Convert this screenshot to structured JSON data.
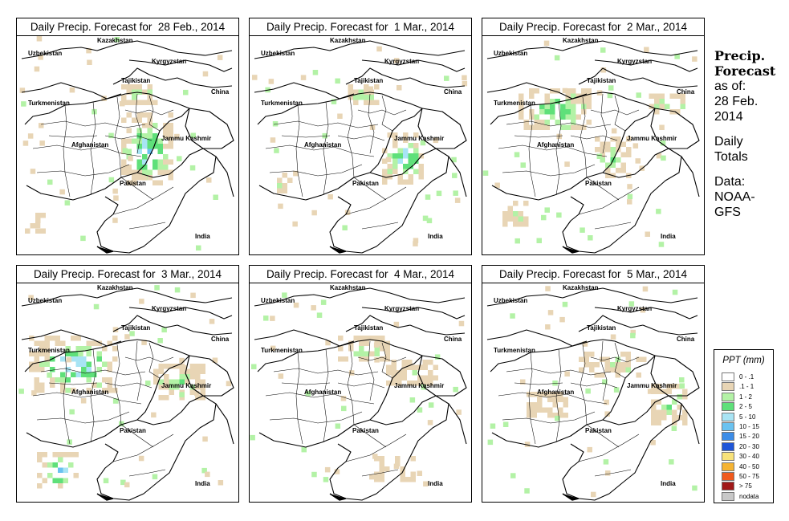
{
  "panels": [
    {
      "title": "Daily Precip. Forecast for  28 Feb., 2014"
    },
    {
      "title": "Daily Precip. Forecast for  1 Mar., 2014"
    },
    {
      "title": "Daily Precip. Forecast for  2 Mar., 2014"
    },
    {
      "title": "Daily Precip. Forecast for  3 Mar., 2014"
    },
    {
      "title": "Daily Precip. Forecast for  4 Mar., 2014"
    },
    {
      "title": "Daily Precip. Forecast for  5 Mar., 2014"
    }
  ],
  "map_labels": {
    "kazakhstan": "Kazakhstan",
    "uzbekistan": "Uzbekistan",
    "kyrgyzstan": "Kyrgyzstan",
    "tajikistan": "Tajikistan",
    "turkmenistan": "Turkmenistan",
    "china": "China",
    "afghanistan": "Afghanistan",
    "jammu_kashmir": "Jammu Kashmir",
    "pakistan": "Pakistan",
    "india": "India"
  },
  "sidebar": {
    "heading1": "Precip.",
    "heading2": "Forecast",
    "line1": "as of:",
    "line2": "28 Feb.",
    "line3": "2014",
    "line4": "Daily",
    "line5": "Totals",
    "line6": "Data:",
    "line7": "NOAA-",
    "line8": "GFS"
  },
  "legend": {
    "title": "PPT (mm)",
    "items": [
      {
        "label": "0 - .1",
        "color": "#ffffff"
      },
      {
        "label": ".1 - 1",
        "color": "#e8d5b5"
      },
      {
        "label": "1 - 2",
        "color": "#b3f2a6"
      },
      {
        "label": "2 - 5",
        "color": "#5fe07a"
      },
      {
        "label": "5 - 10",
        "color": "#a8e4f4"
      },
      {
        "label": "10 - 15",
        "color": "#6ac2f0"
      },
      {
        "label": "15 - 20",
        "color": "#3c8de8"
      },
      {
        "label": "20 - 30",
        "color": "#1f56d8"
      },
      {
        "label": "30 - 40",
        "color": "#f8e27a"
      },
      {
        "label": "40 - 50",
        "color": "#f5b434"
      },
      {
        "label": "50 - 75",
        "color": "#f05a1c"
      },
      {
        "label": "> 75",
        "color": "#a01818"
      },
      {
        "label": "nodata",
        "color": "#c8c8c8"
      }
    ]
  }
}
